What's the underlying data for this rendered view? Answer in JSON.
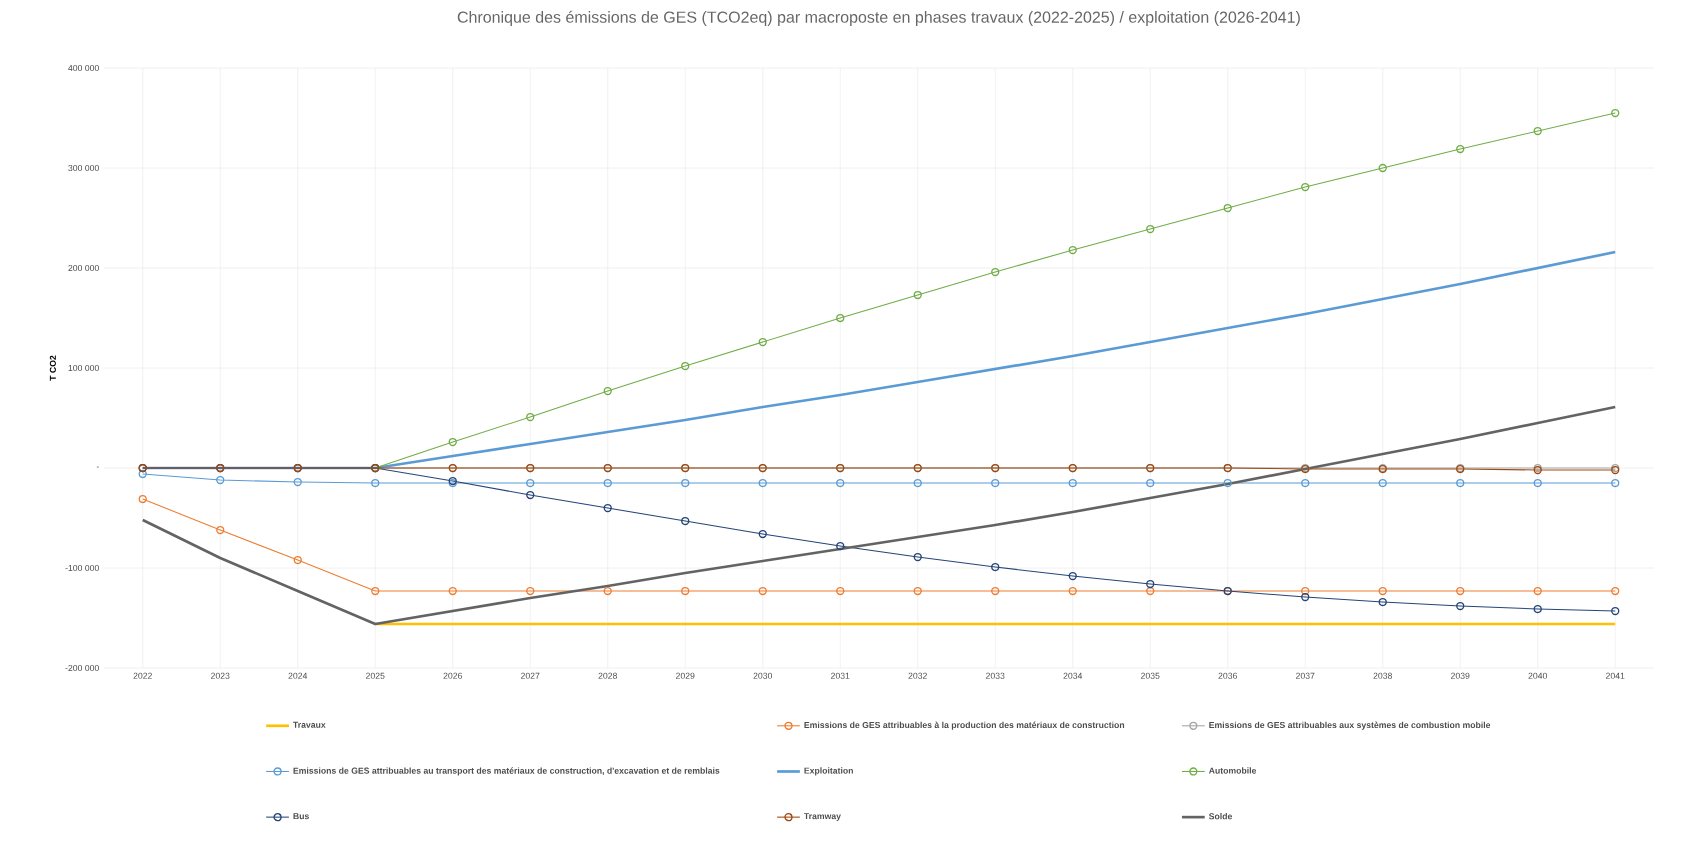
{
  "chart_data": {
    "type": "line",
    "title": "Chronique des émissions de GES (TCO2eq) par macroposte en phases travaux (2022-2025) / exploitation (2026-2041)",
    "ylabel": "T CO2",
    "categories": [
      "2022",
      "2023",
      "2024",
      "2025",
      "2026",
      "2027",
      "2028",
      "2029",
      "2030",
      "2031",
      "2032",
      "2033",
      "2034",
      "2035",
      "2036",
      "2037",
      "2038",
      "2039",
      "2040",
      "2041"
    ],
    "ylim": [
      -200000,
      400000
    ],
    "yticks": [
      {
        "value": -200000,
        "label": "-200 000"
      },
      {
        "value": -100000,
        "label": "-100 000"
      },
      {
        "value": 0,
        "label": "-"
      },
      {
        "value": 100000,
        "label": "100 000"
      },
      {
        "value": 200000,
        "label": "200 000"
      },
      {
        "value": 300000,
        "label": "300 000"
      },
      {
        "value": 400000,
        "label": "400 000"
      }
    ],
    "grid": true,
    "legend": "bottom",
    "series": [
      {
        "name": "Travaux",
        "color": "#ffc000",
        "marker": "none",
        "values": [
          null,
          null,
          null,
          -156000,
          -156000,
          -156000,
          -156000,
          -156000,
          -156000,
          -156000,
          -156000,
          -156000,
          -156000,
          -156000,
          -156000,
          -156000,
          -156000,
          -156000,
          -156000,
          -156000
        ]
      },
      {
        "name": "Emissions de GES attribuables à la production des matériaux de construction",
        "color": "#ed7d31",
        "marker": "circle",
        "values": [
          -31000,
          -62000,
          -92000,
          -123000,
          -123000,
          -123000,
          -123000,
          -123000,
          -123000,
          -123000,
          -123000,
          -123000,
          -123000,
          -123000,
          -123000,
          -123000,
          -123000,
          -123000,
          -123000,
          -123000
        ]
      },
      {
        "name": "Emissions de GES attribuables aux systèmes de combustion mobile",
        "color": "#a5a5a5",
        "marker": "circle",
        "values": [
          0,
          0,
          0,
          0,
          0,
          0,
          0,
          0,
          0,
          0,
          0,
          0,
          0,
          0,
          0,
          0,
          0,
          0,
          0,
          0
        ]
      },
      {
        "name": "Emissions de GES attribuables au transport des matériaux de construction, d'excavation et de remblais",
        "color": "#5b9bd5",
        "marker": "circle",
        "values": [
          -6000,
          -12000,
          -14000,
          -15000,
          -15000,
          -15000,
          -15000,
          -15000,
          -15000,
          -15000,
          -15000,
          -15000,
          -15000,
          -15000,
          -15000,
          -15000,
          -15000,
          -15000,
          -15000,
          -15000
        ]
      },
      {
        "name": "Exploitation",
        "color": "#5b9bd5",
        "marker": "none",
        "values": [
          0,
          0,
          0,
          0,
          12000,
          24000,
          36000,
          48000,
          61000,
          73000,
          86000,
          99000,
          112000,
          126000,
          140000,
          154000,
          169000,
          184000,
          200000,
          216000
        ]
      },
      {
        "name": "Automobile",
        "color": "#70ad47",
        "marker": "circle",
        "values": [
          null,
          null,
          null,
          0,
          26000,
          51000,
          77000,
          102000,
          126000,
          150000,
          173000,
          196000,
          218000,
          239000,
          260000,
          281000,
          300000,
          319000,
          337000,
          355000
        ]
      },
      {
        "name": "Bus",
        "color": "#264478",
        "marker": "circle",
        "values": [
          0,
          0,
          0,
          0,
          -13000,
          -27000,
          -40000,
          -53000,
          -66000,
          -78000,
          -89000,
          -99000,
          -108000,
          -116000,
          -123000,
          -129000,
          -134000,
          -138000,
          -141000,
          -143000
        ]
      },
      {
        "name": "Tramway",
        "color": "#9e480e",
        "marker": "circle",
        "values": [
          0,
          0,
          0,
          0,
          0,
          0,
          0,
          0,
          0,
          0,
          0,
          0,
          0,
          0,
          0,
          -1000,
          -1000,
          -1000,
          -2000,
          -2000
        ]
      },
      {
        "name": "Solde",
        "color": "#636363",
        "marker": "none",
        "values": [
          -52000,
          -90000,
          -123000,
          -156000,
          -143000,
          -130000,
          -118000,
          -105000,
          -93000,
          -81000,
          -69000,
          -57000,
          -44000,
          -30000,
          -16000,
          -1000,
          14000,
          29000,
          45000,
          61000
        ]
      }
    ]
  }
}
